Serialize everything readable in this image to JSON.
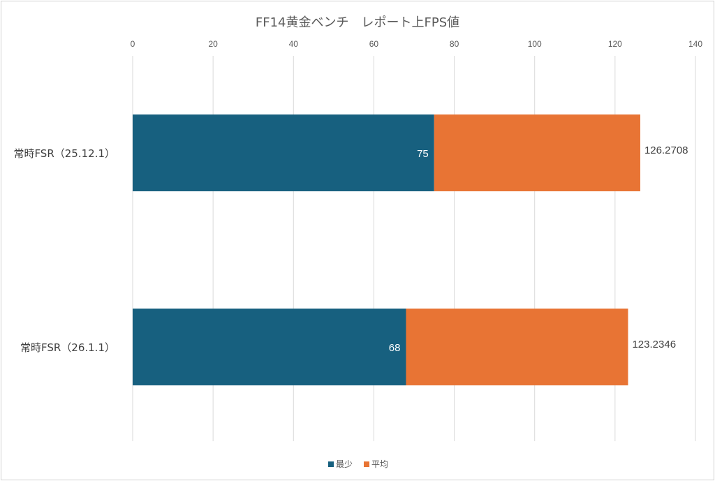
{
  "chart_data": {
    "type": "bar",
    "orientation": "horizontal",
    "stacked": true,
    "title": "FF14黄金ベンチ　レポート上FPS値",
    "categories": [
      "常時FSR（25.12.1）",
      "常時FSR（26.1.1）"
    ],
    "series": [
      {
        "name": "最少",
        "values": [
          75,
          68
        ],
        "color": "#17607f"
      },
      {
        "name": "平均",
        "values": [
          51.2708,
          55.2346
        ],
        "color": "#e87434"
      }
    ],
    "data_labels": {
      "最少": [
        "75",
        "68"
      ],
      "平均": [
        "126.2708",
        "123.2346"
      ]
    },
    "xlim": [
      0,
      140
    ],
    "xticks": [
      0,
      20,
      40,
      60,
      80,
      100,
      120,
      140
    ],
    "axis_position": "top",
    "grid": true,
    "legend_position": "bottom"
  }
}
